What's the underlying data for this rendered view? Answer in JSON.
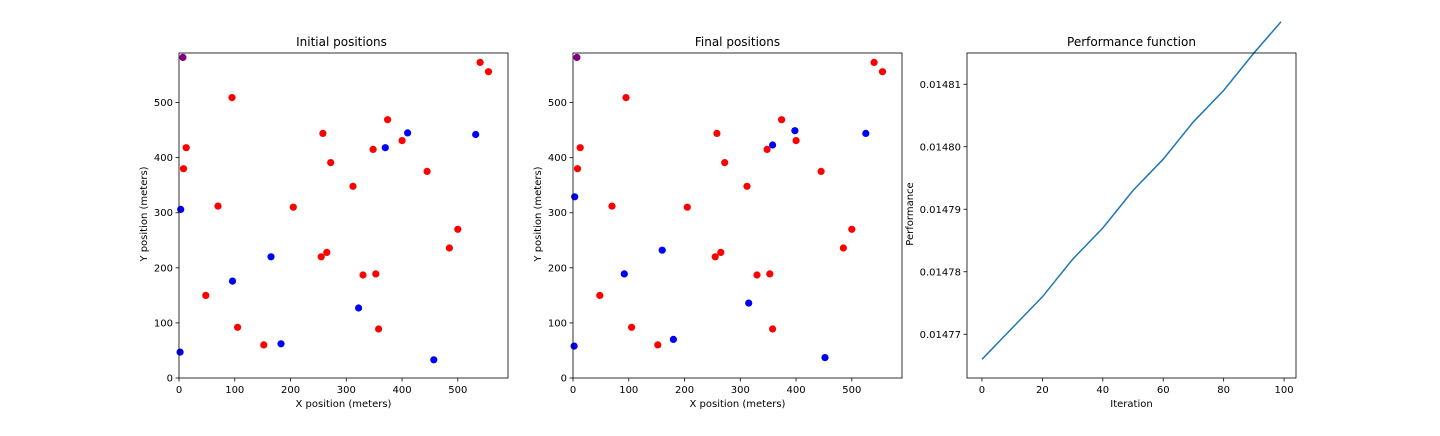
{
  "colors": {
    "red": "#ff0000",
    "blue": "#0000ff",
    "purple": "#800080",
    "line": "#1f77b4",
    "axis": "#000000"
  },
  "chart_data": [
    {
      "type": "scatter",
      "title": "Initial positions",
      "xlabel": "X position (meters)",
      "ylabel": "Y position (meters)",
      "xlim": [
        0,
        590
      ],
      "ylim": [
        0,
        590
      ],
      "xticks": [
        0,
        100,
        200,
        300,
        400,
        500
      ],
      "yticks": [
        0,
        100,
        200,
        300,
        400,
        500
      ],
      "grid": false,
      "series": [
        {
          "color": "red",
          "points": [
            [
              13,
              418
            ],
            [
              8,
              380
            ],
            [
              95,
              509
            ],
            [
              70,
              312
            ],
            [
              48,
              150
            ],
            [
              105,
              92
            ],
            [
              152,
              60
            ],
            [
              205,
              310
            ],
            [
              255,
              220
            ],
            [
              265,
              228
            ],
            [
              258,
              444
            ],
            [
              272,
              391
            ],
            [
              312,
              348
            ],
            [
              330,
              187
            ],
            [
              348,
              415
            ],
            [
              353,
              189
            ],
            [
              358,
              89
            ],
            [
              374,
              469
            ],
            [
              400,
              431
            ],
            [
              445,
              375
            ],
            [
              485,
              236
            ],
            [
              500,
              270
            ],
            [
              540,
              573
            ],
            [
              555,
              556
            ]
          ]
        },
        {
          "color": "blue",
          "points": [
            [
              3,
              306
            ],
            [
              2,
              47
            ],
            [
              96,
              176
            ],
            [
              165,
              220
            ],
            [
              183,
              62
            ],
            [
              322,
              127
            ],
            [
              370,
              418
            ],
            [
              410,
              445
            ],
            [
              457,
              33
            ],
            [
              532,
              442
            ]
          ]
        },
        {
          "color": "purple",
          "points": [
            [
              7,
              582
            ]
          ]
        }
      ]
    },
    {
      "type": "scatter",
      "title": "Final positions",
      "xlabel": "X position (meters)",
      "ylabel": "Y position (meters)",
      "xlim": [
        0,
        590
      ],
      "ylim": [
        0,
        590
      ],
      "xticks": [
        0,
        100,
        200,
        300,
        400,
        500
      ],
      "yticks": [
        0,
        100,
        200,
        300,
        400,
        500
      ],
      "grid": false,
      "series": [
        {
          "color": "red",
          "points": [
            [
              13,
              418
            ],
            [
              8,
              380
            ],
            [
              95,
              509
            ],
            [
              70,
              312
            ],
            [
              48,
              150
            ],
            [
              105,
              92
            ],
            [
              152,
              60
            ],
            [
              205,
              310
            ],
            [
              255,
              220
            ],
            [
              265,
              228
            ],
            [
              258,
              444
            ],
            [
              272,
              391
            ],
            [
              312,
              348
            ],
            [
              330,
              187
            ],
            [
              348,
              415
            ],
            [
              353,
              189
            ],
            [
              358,
              89
            ],
            [
              374,
              469
            ],
            [
              400,
              431
            ],
            [
              445,
              375
            ],
            [
              485,
              236
            ],
            [
              500,
              270
            ],
            [
              540,
              573
            ],
            [
              555,
              556
            ]
          ]
        },
        {
          "color": "blue",
          "points": [
            [
              3,
              329
            ],
            [
              2,
              58
            ],
            [
              92,
              189
            ],
            [
              160,
              232
            ],
            [
              180,
              70
            ],
            [
              315,
              136
            ],
            [
              358,
              423
            ],
            [
              398,
              449
            ],
            [
              452,
              37
            ],
            [
              525,
              444
            ]
          ]
        },
        {
          "color": "purple",
          "points": [
            [
              7,
              582
            ]
          ]
        }
      ]
    },
    {
      "type": "line",
      "title": "Performance function",
      "xlabel": "Iteration",
      "ylabel": "Performance",
      "xlim": [
        -4.95,
        103.95
      ],
      "ylim": [
        0.014763,
        0.014815
      ],
      "xticks": [
        0,
        20,
        40,
        60,
        80,
        100
      ],
      "yticks": [
        "0.01477",
        "0.01478",
        "0.01479",
        "0.01480",
        "0.01481"
      ],
      "grid": false,
      "series": [
        {
          "color": "line",
          "x": [
            0,
            10,
            20,
            30,
            40,
            50,
            60,
            70,
            80,
            90,
            99
          ],
          "y": [
            0.014766,
            0.014771,
            0.014776,
            0.014782,
            0.014787,
            0.014793,
            0.014798,
            0.014804,
            0.014809,
            0.014815,
            0.01482
          ]
        }
      ]
    }
  ]
}
